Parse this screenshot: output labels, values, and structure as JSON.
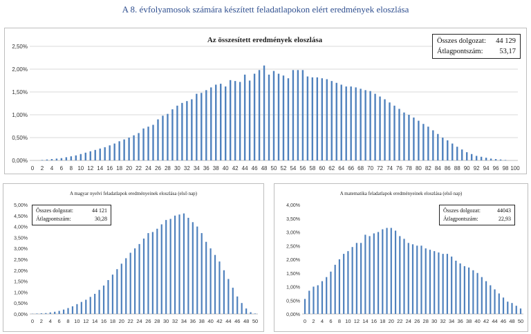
{
  "page": {
    "title": "A 8. évfolyamosok számára készített feladatlapokon elért eredmények eloszlása"
  },
  "colors": {
    "bar": "#4f81bd",
    "gridline": "#d9d9d9",
    "axis": "#bfbfbf",
    "title": "#2f4f8f"
  },
  "chart_data": [
    {
      "id": "main",
      "type": "bar",
      "title": "Az összesített eredmények eloszlása",
      "stats": {
        "count_label": "Összes dolgozat:",
        "count_value": "44 129",
        "avg_label": "Átlagpontszám:",
        "avg_value": "53,17"
      },
      "ylim": [
        0,
        2.5
      ],
      "yticks": [
        0,
        0.5,
        1.0,
        1.5,
        2.0,
        2.5
      ],
      "ytick_labels": [
        "0,00%",
        "0,50%",
        "1,00%",
        "1,50%",
        "2,00%",
        "2,50%"
      ],
      "xlabels": [
        "0",
        "2",
        "4",
        "6",
        "8",
        "10",
        "12",
        "14",
        "16",
        "18",
        "20",
        "22",
        "24",
        "26",
        "28",
        "30",
        "32",
        "34",
        "36",
        "38",
        "40",
        "42",
        "44",
        "46",
        "48",
        "50",
        "52",
        "54",
        "56",
        "58",
        "60",
        "62",
        "64",
        "66",
        "68",
        "70",
        "72",
        "74",
        "76",
        "78",
        "80",
        "82",
        "84",
        "86",
        "88",
        "90",
        "92",
        "94",
        "96",
        "98",
        "100"
      ],
      "grid": true,
      "x": [
        0,
        1,
        2,
        3,
        4,
        5,
        6,
        7,
        8,
        9,
        10,
        11,
        12,
        13,
        14,
        15,
        16,
        17,
        18,
        19,
        20,
        21,
        22,
        23,
        24,
        25,
        26,
        27,
        28,
        29,
        30,
        31,
        32,
        33,
        34,
        35,
        36,
        37,
        38,
        39,
        40,
        41,
        42,
        43,
        44,
        45,
        46,
        47,
        48,
        49,
        50,
        51,
        52,
        53,
        54,
        55,
        56,
        57,
        58,
        59,
        60,
        61,
        62,
        63,
        64,
        65,
        66,
        67,
        68,
        69,
        70,
        71,
        72,
        73,
        74,
        75,
        76,
        77,
        78,
        79,
        80,
        81,
        82,
        83,
        84,
        85,
        86,
        87,
        88,
        89,
        90,
        91,
        92,
        93,
        94,
        95,
        96,
        97,
        98,
        99,
        100
      ],
      "values": [
        0,
        0,
        0.01,
        0.02,
        0.03,
        0.04,
        0.05,
        0.07,
        0.09,
        0.11,
        0.14,
        0.17,
        0.2,
        0.23,
        0.26,
        0.29,
        0.33,
        0.37,
        0.42,
        0.46,
        0.5,
        0.55,
        0.6,
        0.7,
        0.74,
        0.78,
        0.9,
        0.98,
        1.02,
        1.12,
        1.2,
        1.26,
        1.3,
        1.34,
        1.46,
        1.48,
        1.54,
        1.6,
        1.66,
        1.68,
        1.62,
        1.76,
        1.74,
        1.72,
        1.88,
        1.75,
        1.9,
        1.98,
        2.08,
        1.88,
        1.96,
        1.9,
        1.86,
        1.8,
        1.98,
        1.98,
        1.98,
        1.84,
        1.82,
        1.82,
        1.8,
        1.78,
        1.74,
        1.7,
        1.66,
        1.62,
        1.62,
        1.6,
        1.57,
        1.54,
        1.52,
        1.46,
        1.4,
        1.34,
        1.27,
        1.2,
        1.13,
        1.05,
        1.0,
        0.94,
        0.87,
        0.8,
        0.74,
        0.66,
        0.58,
        0.5,
        0.44,
        0.37,
        0.3,
        0.24,
        0.18,
        0.14,
        0.1,
        0.08,
        0.06,
        0.04,
        0.03,
        0.02,
        0.01,
        0,
        0
      ]
    },
    {
      "id": "hu",
      "type": "bar",
      "title": "A magyar nyelvi feladatlapok eredményeinek eloszlása (első nap)",
      "stats": {
        "count_label": "Összes dolgozat:",
        "count_value": "44 121",
        "avg_label": "Átlagpontszám:",
        "avg_value": "30,28"
      },
      "ylim": [
        0,
        5.0
      ],
      "yticks": [
        0,
        0.5,
        1.0,
        1.5,
        2.0,
        2.5,
        3.0,
        3.5,
        4.0,
        4.5,
        5.0
      ],
      "ytick_labels": [
        "0,00%",
        "0,50%",
        "1,00%",
        "1,50%",
        "2,00%",
        "2,50%",
        "3,00%",
        "3,50%",
        "4,00%",
        "4,50%",
        "5,00%"
      ],
      "xlabels": [
        "0",
        "2",
        "4",
        "6",
        "8",
        "10",
        "12",
        "14",
        "16",
        "18",
        "20",
        "22",
        "24",
        "26",
        "28",
        "30",
        "32",
        "34",
        "36",
        "38",
        "40",
        "42",
        "44",
        "46",
        "48",
        "50"
      ],
      "grid": false,
      "x": [
        0,
        1,
        2,
        3,
        4,
        5,
        6,
        7,
        8,
        9,
        10,
        11,
        12,
        13,
        14,
        15,
        16,
        17,
        18,
        19,
        20,
        21,
        22,
        23,
        24,
        25,
        26,
        27,
        28,
        29,
        30,
        31,
        32,
        33,
        34,
        35,
        36,
        37,
        38,
        39,
        40,
        41,
        42,
        43,
        44,
        45,
        46,
        47,
        48,
        49,
        50
      ],
      "values": [
        0.01,
        0.02,
        0.03,
        0.04,
        0.07,
        0.1,
        0.14,
        0.2,
        0.27,
        0.35,
        0.45,
        0.55,
        0.65,
        0.78,
        0.92,
        1.1,
        1.3,
        1.55,
        1.8,
        2.05,
        2.3,
        2.55,
        2.8,
        3.0,
        3.2,
        3.45,
        3.7,
        3.75,
        3.9,
        4.1,
        4.3,
        4.35,
        4.5,
        4.55,
        4.6,
        4.4,
        4.2,
        4.0,
        3.7,
        3.3,
        3.0,
        2.7,
        2.4,
        2.0,
        1.6,
        1.2,
        0.8,
        0.5,
        0.25,
        0.08,
        0.02
      ]
    },
    {
      "id": "ma",
      "type": "bar",
      "title": "A matematika feladatlapok eredményeinek eloszlása (első nap)",
      "stats": {
        "count_label": "Összes dolgozat:",
        "count_value": "44043",
        "avg_label": "Átlagpontszám:",
        "avg_value": "22,93"
      },
      "ylim": [
        0,
        4.0
      ],
      "yticks": [
        0,
        0.5,
        1.0,
        1.5,
        2.0,
        2.5,
        3.0,
        3.5,
        4.0
      ],
      "ytick_labels": [
        "0,00%",
        "0,50%",
        "1,00%",
        "1,50%",
        "2,00%",
        "2,50%",
        "3,00%",
        "3,50%",
        "4,00%"
      ],
      "xlabels": [
        "0",
        "2",
        "4",
        "6",
        "8",
        "10",
        "12",
        "14",
        "16",
        "18",
        "20",
        "22",
        "24",
        "26",
        "28",
        "30",
        "32",
        "34",
        "36",
        "38",
        "40",
        "42",
        "44",
        "46",
        "48",
        "50"
      ],
      "grid": false,
      "x": [
        0,
        1,
        2,
        3,
        4,
        5,
        6,
        7,
        8,
        9,
        10,
        11,
        12,
        13,
        14,
        15,
        16,
        17,
        18,
        19,
        20,
        21,
        22,
        23,
        24,
        25,
        26,
        27,
        28,
        29,
        30,
        31,
        32,
        33,
        34,
        35,
        36,
        37,
        38,
        39,
        40,
        41,
        42,
        43,
        44,
        45,
        46,
        47,
        48,
        49,
        50
      ],
      "values": [
        0.55,
        0.85,
        1.0,
        1.05,
        1.2,
        1.35,
        1.55,
        1.8,
        2.0,
        2.2,
        2.3,
        2.45,
        2.6,
        2.6,
        2.9,
        2.85,
        2.95,
        3.0,
        3.1,
        3.15,
        3.15,
        3.05,
        2.85,
        2.75,
        2.6,
        2.55,
        2.5,
        2.5,
        2.4,
        2.35,
        2.3,
        2.25,
        2.2,
        2.2,
        2.1,
        1.95,
        1.85,
        1.75,
        1.7,
        1.6,
        1.5,
        1.35,
        1.2,
        1.05,
        0.9,
        0.75,
        0.6,
        0.45,
        0.4,
        0.3,
        0.2
      ]
    }
  ]
}
